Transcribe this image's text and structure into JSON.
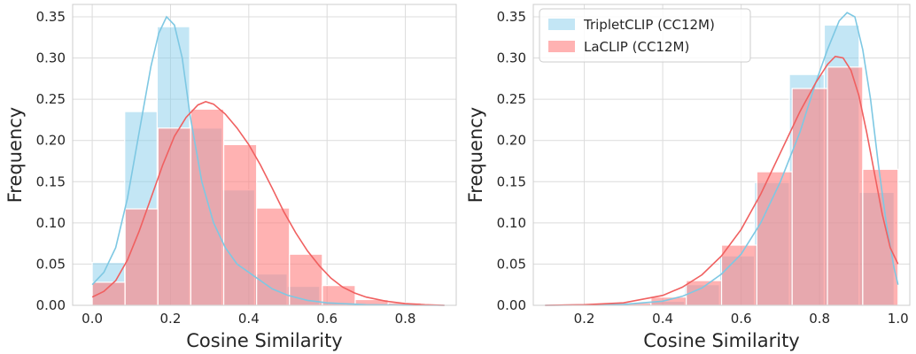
{
  "chart_data": [
    {
      "type": "histogram",
      "xlabel": "Cosine Similarity",
      "ylabel": "Frequency",
      "xlim": [
        -0.05,
        0.93
      ],
      "ylim": [
        0,
        0.365
      ],
      "xticks": [
        0.0,
        0.2,
        0.4,
        0.6,
        0.8
      ],
      "xtick_labels": [
        "0.0",
        "0.2",
        "0.4",
        "0.6",
        "0.8"
      ],
      "yticks": [
        0.0,
        0.05,
        0.1,
        0.15,
        0.2,
        0.25,
        0.3,
        0.35
      ],
      "ytick_labels": [
        "0.00",
        "0.05",
        "0.10",
        "0.15",
        "0.20",
        "0.25",
        "0.30",
        "0.35"
      ],
      "grid": true,
      "legend": null,
      "series": [
        {
          "name": "TripletCLIP (CC12M)",
          "color": "#87ceeb",
          "bins": [
            [
              0.0,
              0.083,
              0.052
            ],
            [
              0.083,
              0.166,
              0.235
            ],
            [
              0.166,
              0.249,
              0.338
            ],
            [
              0.249,
              0.332,
              0.215
            ],
            [
              0.332,
              0.415,
              0.14
            ],
            [
              0.415,
              0.498,
              0.038
            ],
            [
              0.498,
              0.581,
              0.023
            ],
            [
              0.581,
              0.664,
              0.003
            ],
            [
              0.664,
              0.747,
              0.001
            ],
            [
              0.747,
              0.83,
              0.0005
            ]
          ],
          "kde": [
            [
              0.0,
              0.025
            ],
            [
              0.03,
              0.04
            ],
            [
              0.06,
              0.07
            ],
            [
              0.09,
              0.13
            ],
            [
              0.12,
              0.21
            ],
            [
              0.15,
              0.29
            ],
            [
              0.17,
              0.33
            ],
            [
              0.19,
              0.35
            ],
            [
              0.21,
              0.34
            ],
            [
              0.23,
              0.3
            ],
            [
              0.25,
              0.23
            ],
            [
              0.28,
              0.15
            ],
            [
              0.31,
              0.1
            ],
            [
              0.34,
              0.07
            ],
            [
              0.37,
              0.05
            ],
            [
              0.4,
              0.04
            ],
            [
              0.43,
              0.03
            ],
            [
              0.46,
              0.02
            ],
            [
              0.5,
              0.012
            ],
            [
              0.55,
              0.006
            ],
            [
              0.6,
              0.003
            ],
            [
              0.7,
              0.0008
            ],
            [
              0.8,
              0.0002
            ],
            [
              0.9,
              0.0
            ]
          ]
        },
        {
          "name": "LaCLIP (CC12M)",
          "color": "#ff7f7f",
          "bins": [
            [
              0.0,
              0.084,
              0.028
            ],
            [
              0.084,
              0.168,
              0.117
            ],
            [
              0.168,
              0.252,
              0.215
            ],
            [
              0.252,
              0.336,
              0.238
            ],
            [
              0.336,
              0.42,
              0.195
            ],
            [
              0.42,
              0.504,
              0.118
            ],
            [
              0.504,
              0.588,
              0.062
            ],
            [
              0.588,
              0.672,
              0.024
            ],
            [
              0.672,
              0.756,
              0.007
            ],
            [
              0.756,
              0.84,
              0.003
            ]
          ],
          "kde": [
            [
              0.0,
              0.01
            ],
            [
              0.03,
              0.017
            ],
            [
              0.06,
              0.03
            ],
            [
              0.09,
              0.055
            ],
            [
              0.12,
              0.09
            ],
            [
              0.15,
              0.13
            ],
            [
              0.18,
              0.17
            ],
            [
              0.21,
              0.205
            ],
            [
              0.24,
              0.228
            ],
            [
              0.27,
              0.243
            ],
            [
              0.29,
              0.247
            ],
            [
              0.31,
              0.244
            ],
            [
              0.34,
              0.232
            ],
            [
              0.37,
              0.215
            ],
            [
              0.4,
              0.195
            ],
            [
              0.43,
              0.17
            ],
            [
              0.46,
              0.142
            ],
            [
              0.49,
              0.113
            ],
            [
              0.52,
              0.088
            ],
            [
              0.55,
              0.066
            ],
            [
              0.58,
              0.048
            ],
            [
              0.61,
              0.033
            ],
            [
              0.64,
              0.022
            ],
            [
              0.67,
              0.015
            ],
            [
              0.7,
              0.01
            ],
            [
              0.75,
              0.005
            ],
            [
              0.8,
              0.002
            ],
            [
              0.85,
              0.0008
            ],
            [
              0.9,
              0.0
            ]
          ]
        }
      ]
    },
    {
      "type": "histogram",
      "xlabel": "Cosine Similarity",
      "ylabel": "Frequency",
      "xlim": [
        0.07,
        1.03
      ],
      "ylim": [
        0,
        0.365
      ],
      "xticks": [
        0.2,
        0.4,
        0.6,
        0.8,
        1.0
      ],
      "xtick_labels": [
        "0.2",
        "0.4",
        "0.6",
        "0.8",
        "1.0"
      ],
      "yticks": [
        0.0,
        0.05,
        0.1,
        0.15,
        0.2,
        0.25,
        0.3,
        0.35
      ],
      "ytick_labels": [
        "0.00",
        "0.05",
        "0.10",
        "0.15",
        "0.20",
        "0.25",
        "0.30",
        "0.35"
      ],
      "grid": true,
      "legend": "top-left",
      "series": [
        {
          "name": "TripletCLIP (CC12M)",
          "color": "#87ceeb",
          "bins": [
            [
              0.1,
              0.189,
              0.0
            ],
            [
              0.189,
              0.278,
              0.0
            ],
            [
              0.278,
              0.367,
              0.001
            ],
            [
              0.367,
              0.456,
              0.005
            ],
            [
              0.456,
              0.545,
              0.025
            ],
            [
              0.545,
              0.634,
              0.06
            ],
            [
              0.634,
              0.723,
              0.149
            ],
            [
              0.723,
              0.812,
              0.28
            ],
            [
              0.812,
              0.901,
              0.34
            ],
            [
              0.901,
              0.99,
              0.137
            ]
          ],
          "kde": [
            [
              0.1,
              0.0
            ],
            [
              0.2,
              0.0004
            ],
            [
              0.3,
              0.0012
            ],
            [
              0.4,
              0.005
            ],
            [
              0.45,
              0.011
            ],
            [
              0.5,
              0.021
            ],
            [
              0.55,
              0.038
            ],
            [
              0.6,
              0.062
            ],
            [
              0.65,
              0.1
            ],
            [
              0.7,
              0.15
            ],
            [
              0.75,
              0.21
            ],
            [
              0.79,
              0.27
            ],
            [
              0.82,
              0.31
            ],
            [
              0.85,
              0.345
            ],
            [
              0.87,
              0.355
            ],
            [
              0.89,
              0.35
            ],
            [
              0.91,
              0.31
            ],
            [
              0.93,
              0.25
            ],
            [
              0.95,
              0.17
            ],
            [
              0.97,
              0.1
            ],
            [
              0.99,
              0.045
            ],
            [
              1.0,
              0.025
            ]
          ]
        },
        {
          "name": "LaCLIP (CC12M)",
          "color": "#ff7f7f",
          "bins": [
            [
              0.1,
              0.19,
              0.0
            ],
            [
              0.19,
              0.28,
              0.0005
            ],
            [
              0.28,
              0.37,
              0.003
            ],
            [
              0.37,
              0.46,
              0.01
            ],
            [
              0.46,
              0.55,
              0.03
            ],
            [
              0.55,
              0.64,
              0.073
            ],
            [
              0.64,
              0.73,
              0.162
            ],
            [
              0.73,
              0.82,
              0.263
            ],
            [
              0.82,
              0.91,
              0.289
            ],
            [
              0.91,
              1.0,
              0.165
            ]
          ],
          "kde": [
            [
              0.1,
              0.0
            ],
            [
              0.2,
              0.0008
            ],
            [
              0.3,
              0.003
            ],
            [
              0.4,
              0.012
            ],
            [
              0.45,
              0.022
            ],
            [
              0.5,
              0.037
            ],
            [
              0.55,
              0.06
            ],
            [
              0.6,
              0.092
            ],
            [
              0.65,
              0.135
            ],
            [
              0.7,
              0.185
            ],
            [
              0.75,
              0.235
            ],
            [
              0.79,
              0.27
            ],
            [
              0.82,
              0.292
            ],
            [
              0.84,
              0.302
            ],
            [
              0.86,
              0.3
            ],
            [
              0.88,
              0.285
            ],
            [
              0.9,
              0.255
            ],
            [
              0.92,
              0.21
            ],
            [
              0.94,
              0.16
            ],
            [
              0.96,
              0.11
            ],
            [
              0.98,
              0.07
            ],
            [
              1.0,
              0.05
            ]
          ]
        }
      ]
    }
  ]
}
